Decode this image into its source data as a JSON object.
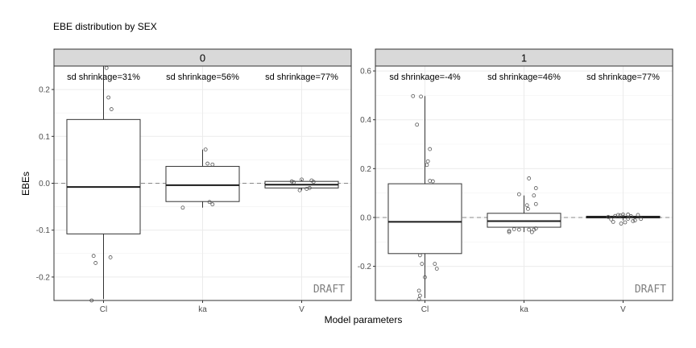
{
  "chart_data": {
    "type": "box",
    "title": "EBE distribution by SEX",
    "xlabel": "Model parameters",
    "ylabel": "EBEs",
    "watermark": "DRAFT",
    "categories": [
      "Cl",
      "ka",
      "V"
    ],
    "panels": [
      {
        "strip": "0",
        "ylim": [
          -0.25,
          0.25
        ],
        "yticks": [
          -0.2,
          -0.1,
          0.0,
          0.1,
          0.2
        ],
        "ytick_labels": [
          "-0.2",
          "-0.1",
          "0.0",
          "0.1",
          "0.2"
        ],
        "shrinkage_labels": [
          "sd shrinkage=31%",
          "sd shrinkage=56%",
          "sd shrinkage=77%"
        ],
        "boxes": [
          {
            "q1": -0.108,
            "median": -0.008,
            "q3": 0.136,
            "lower": -0.247,
            "upper": 0.25
          },
          {
            "q1": -0.039,
            "median": -0.004,
            "q3": 0.036,
            "lower": -0.052,
            "upper": 0.072
          },
          {
            "q1": -0.01,
            "median": -0.003,
            "q3": 0.004,
            "lower": -0.015,
            "upper": 0.008
          }
        ],
        "points": [
          [
            [
              0.03,
              0.246
            ],
            [
              0.05,
              0.183
            ],
            [
              0.08,
              0.158
            ],
            [
              -0.1,
              -0.155
            ],
            [
              -0.08,
              -0.17
            ],
            [
              0.07,
              -0.158
            ],
            [
              -0.12,
              -0.25
            ]
          ],
          [
            [
              0.03,
              0.072
            ],
            [
              0.05,
              0.042
            ],
            [
              0.1,
              0.04
            ],
            [
              -0.2,
              -0.052
            ],
            [
              0.1,
              -0.045
            ],
            [
              0.07,
              -0.04
            ]
          ],
          [
            [
              -0.1,
              0.004
            ],
            [
              0.0,
              0.008
            ],
            [
              0.05,
              -0.012
            ],
            [
              0.1,
              0.006
            ],
            [
              -0.02,
              -0.015
            ],
            [
              0.08,
              -0.01
            ],
            [
              -0.08,
              0.002
            ],
            [
              0.12,
              0.003
            ]
          ]
        ]
      },
      {
        "strip": "1",
        "ylim": [
          -0.34,
          0.62
        ],
        "yticks": [
          -0.2,
          0.0,
          0.2,
          0.4,
          0.6
        ],
        "ytick_labels": [
          "-0.2",
          "0.0",
          "0.2",
          "0.4",
          "0.6"
        ],
        "shrinkage_labels": [
          "sd shrinkage=-4%",
          "sd shrinkage=46%",
          "sd shrinkage=77%"
        ],
        "boxes": [
          {
            "q1": -0.148,
            "median": -0.018,
            "q3": 0.138,
            "lower": -0.33,
            "upper": 0.497
          },
          {
            "q1": -0.04,
            "median": -0.015,
            "q3": 0.017,
            "lower": -0.06,
            "upper": 0.09
          },
          {
            "q1": -0.002,
            "median": 0.002,
            "q3": 0.005,
            "lower": -0.012,
            "upper": 0.012
          }
        ],
        "points": [
          [
            [
              -0.12,
              0.497
            ],
            [
              -0.04,
              0.495
            ],
            [
              0.05,
              0.28
            ],
            [
              0.03,
              0.23
            ],
            [
              0.02,
              0.215
            ],
            [
              0.05,
              0.15
            ],
            [
              0.08,
              0.148
            ],
            [
              -0.08,
              0.38
            ],
            [
              -0.05,
              -0.155
            ],
            [
              0.1,
              -0.19
            ],
            [
              0.12,
              -0.21
            ],
            [
              -0.03,
              -0.19
            ],
            [
              0.0,
              -0.245
            ],
            [
              -0.06,
              -0.3
            ],
            [
              -0.05,
              -0.32
            ],
            [
              -0.06,
              -0.335
            ]
          ],
          [
            [
              -0.05,
              0.095
            ],
            [
              0.05,
              0.16
            ],
            [
              0.12,
              0.12
            ],
            [
              0.1,
              0.09
            ],
            [
              0.12,
              0.055
            ],
            [
              0.03,
              0.05
            ],
            [
              0.04,
              0.035
            ],
            [
              -0.15,
              -0.055
            ],
            [
              -0.1,
              -0.048
            ],
            [
              0.05,
              -0.05
            ],
            [
              0.1,
              -0.05
            ],
            [
              0.12,
              -0.045
            ],
            [
              0.08,
              -0.06
            ],
            [
              -0.05,
              -0.05
            ],
            [
              -0.15,
              -0.06
            ]
          ],
          [
            [
              -0.05,
              0.01
            ],
            [
              -0.03,
              0.008
            ],
            [
              0.0,
              0.012
            ],
            [
              0.05,
              -0.005
            ],
            [
              0.1,
              -0.015
            ],
            [
              0.12,
              -0.012
            ],
            [
              -0.1,
              -0.018
            ],
            [
              -0.02,
              -0.025
            ],
            [
              0.02,
              -0.02
            ],
            [
              0.08,
              0.005
            ],
            [
              0.15,
              0.01
            ],
            [
              -0.15,
              0.002
            ],
            [
              -0.12,
              -0.008
            ],
            [
              0.05,
              0.012
            ],
            [
              0.18,
              -0.006
            ],
            [
              -0.08,
              0.006
            ]
          ]
        ]
      }
    ]
  }
}
